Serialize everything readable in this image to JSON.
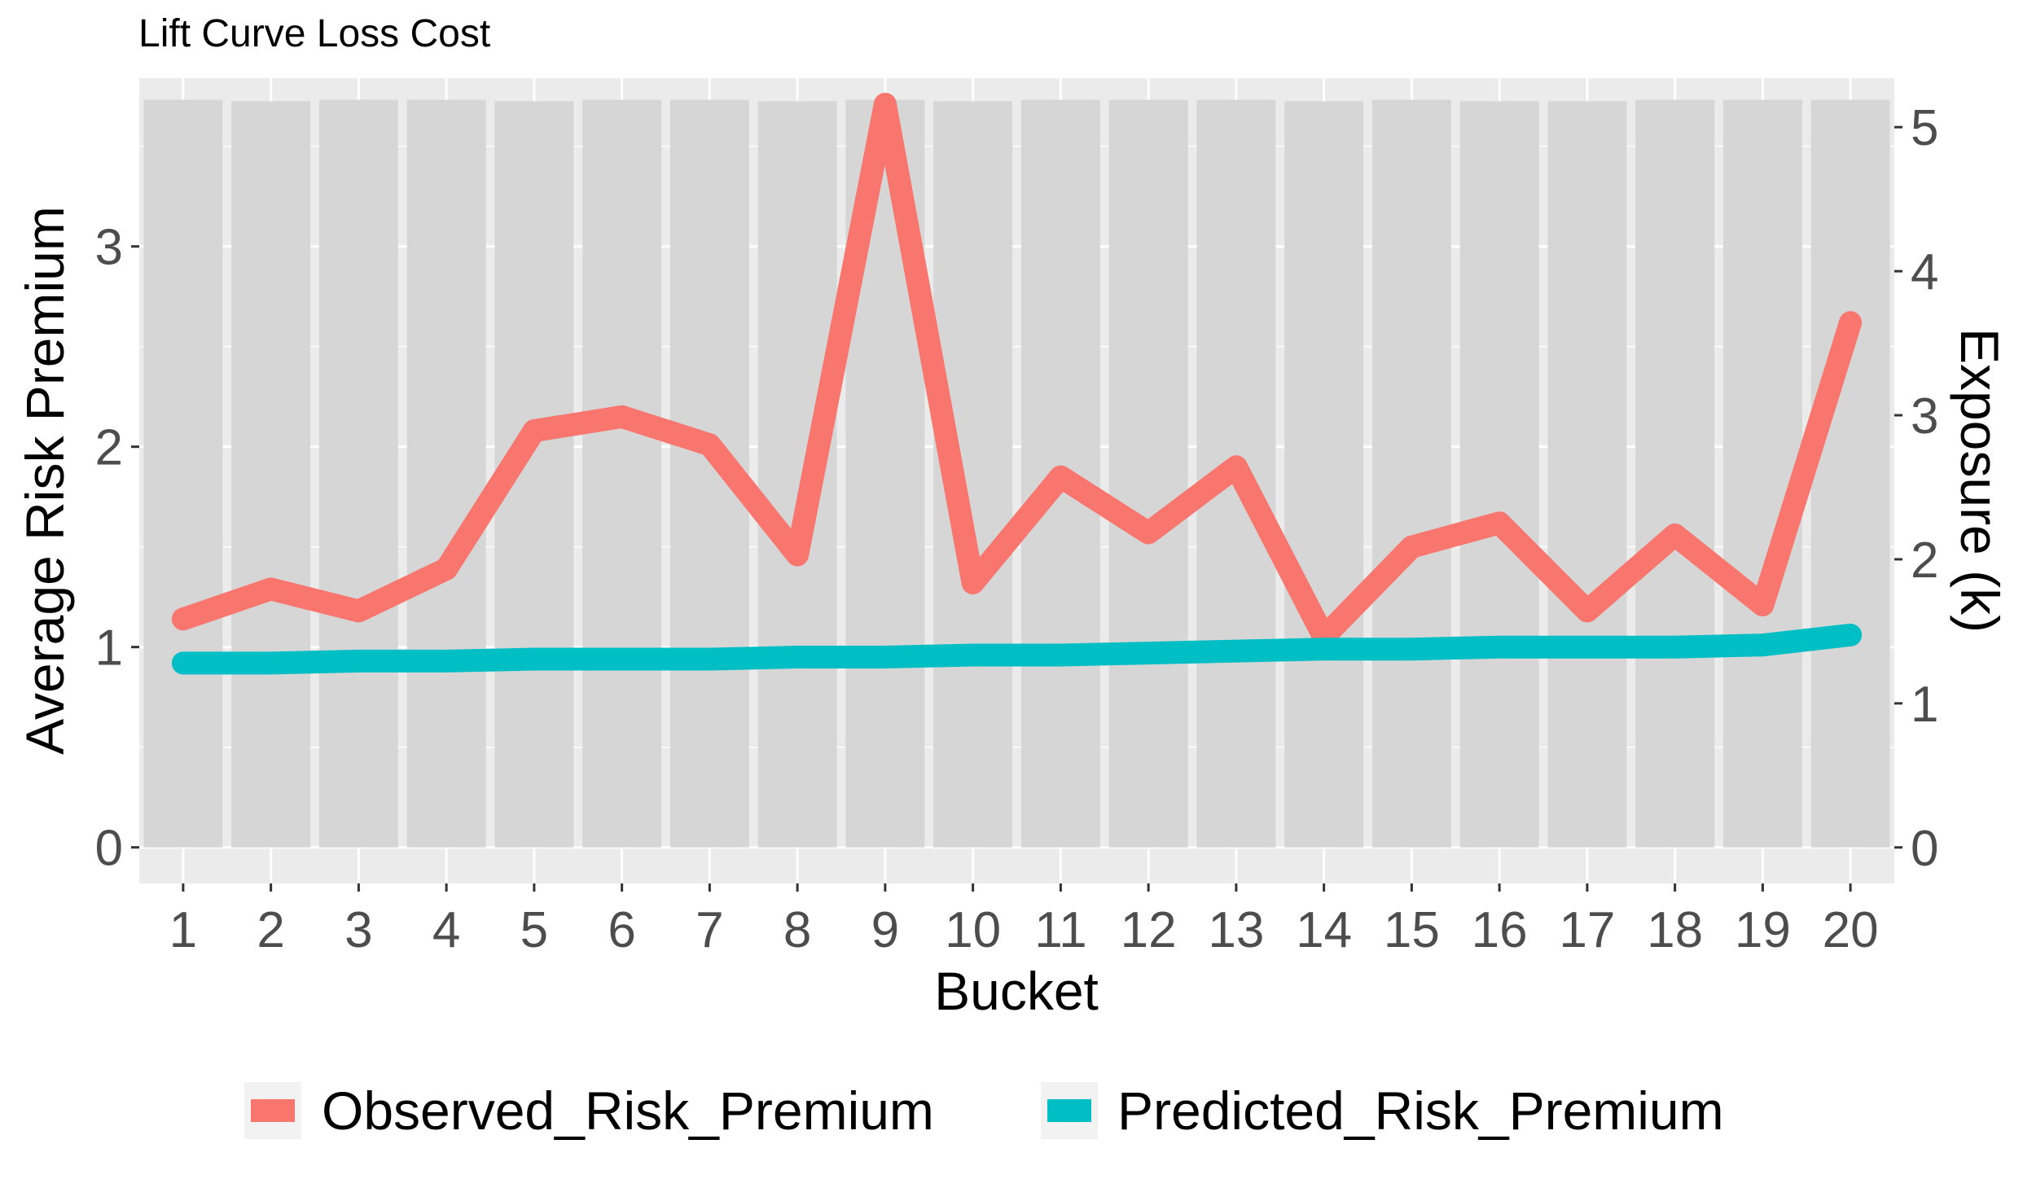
{
  "chart_data": {
    "type": "line",
    "title": "Lift Curve Loss Cost",
    "xlabel": "Bucket",
    "ylabel": "Average Risk Premium",
    "y2label": "Exposure (k)",
    "categories": [
      "1",
      "2",
      "3",
      "4",
      "5",
      "6",
      "7",
      "8",
      "9",
      "10",
      "11",
      "12",
      "13",
      "14",
      "15",
      "16",
      "17",
      "18",
      "19",
      "20"
    ],
    "ylim": [
      -0.18,
      3.84
    ],
    "yticks": [
      0,
      1,
      2,
      3
    ],
    "y2lim": [
      -0.25,
      5.34
    ],
    "y2ticks": [
      0,
      1,
      2,
      3,
      4,
      5
    ],
    "bars": {
      "name": "Exposure (k)",
      "axis": "secondary",
      "color": "#d6d6d6",
      "values": [
        5.19,
        5.18,
        5.19,
        5.19,
        5.18,
        5.19,
        5.19,
        5.18,
        5.19,
        5.18,
        5.19,
        5.19,
        5.19,
        5.18,
        5.19,
        5.18,
        5.18,
        5.19,
        5.19,
        5.19
      ]
    },
    "series": [
      {
        "name": "Observed_Risk_Premium",
        "color": "#f8766d",
        "values": [
          1.14,
          1.29,
          1.18,
          1.39,
          2.08,
          2.15,
          2.01,
          1.46,
          3.71,
          1.32,
          1.85,
          1.57,
          1.9,
          1.05,
          1.5,
          1.62,
          1.18,
          1.56,
          1.21,
          2.62
        ]
      },
      {
        "name": "Predicted_Risk_Premium",
        "color": "#00bfc4",
        "values": [
          0.92,
          0.92,
          0.93,
          0.93,
          0.94,
          0.94,
          0.94,
          0.95,
          0.95,
          0.96,
          0.96,
          0.97,
          0.98,
          0.99,
          0.99,
          1.0,
          1.0,
          1.0,
          1.01,
          1.06
        ]
      }
    ],
    "grid": true,
    "legend_position": "bottom",
    "panel_background": "#ebebeb"
  }
}
